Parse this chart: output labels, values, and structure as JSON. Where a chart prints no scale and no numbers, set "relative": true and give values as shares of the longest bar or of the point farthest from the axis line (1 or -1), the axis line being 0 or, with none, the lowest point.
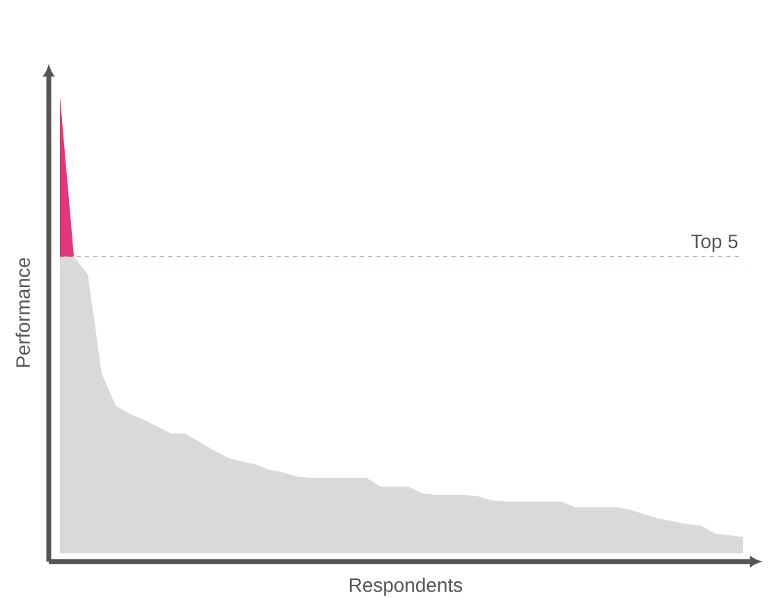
{
  "chart_data": {
    "type": "area",
    "relative": true,
    "stacked": true,
    "xlabel": "Respondents",
    "ylabel": "Performance",
    "categories": [
      null,
      null,
      null,
      null,
      null,
      null,
      null,
      null,
      null,
      null,
      null,
      null,
      null,
      null,
      null,
      null,
      null,
      null,
      null,
      null,
      null,
      null,
      null,
      null,
      null,
      null,
      null,
      null,
      null,
      null,
      null,
      null,
      null,
      null,
      null,
      null,
      null,
      null,
      null,
      null,
      null,
      null,
      null,
      null,
      null,
      null,
      null,
      null,
      null,
      null
    ],
    "series": [
      {
        "color": "#d9d9d9",
        "values": [
          0.649,
          0.649,
          0.61,
          0.393,
          0.323,
          0.305,
          0.293,
          0.277,
          0.262,
          0.262,
          0.244,
          0.226,
          0.21,
          0.201,
          0.195,
          0.183,
          0.177,
          0.168,
          0.165,
          0.165,
          0.165,
          0.165,
          0.165,
          0.146,
          0.146,
          0.146,
          0.131,
          0.128,
          0.128,
          0.128,
          0.125,
          0.116,
          0.113,
          0.113,
          0.113,
          0.113,
          0.113,
          0.101,
          0.101,
          0.101,
          0.101,
          0.095,
          0.085,
          0.076,
          0.07,
          0.064,
          0.061,
          0.043,
          0.04,
          0.036
        ]
      },
      {
        "color": "#e0387a",
        "values": [
          0.351,
          0,
          null,
          null,
          null,
          null,
          null,
          null,
          null,
          null,
          null,
          null,
          null,
          null,
          null,
          null,
          null,
          null,
          null,
          null,
          null,
          null,
          null,
          null,
          null,
          null,
          null,
          null,
          null,
          null,
          null,
          null,
          null,
          null,
          null,
          null,
          null,
          null,
          null,
          null,
          null,
          null,
          null,
          null,
          null,
          null,
          null,
          null,
          null,
          null
        ]
      }
    ],
    "ref_lines": [
      {
        "axis": "y",
        "value": 0.649,
        "label": "Top 5",
        "color": "#c0305f",
        "line_style": "dashed"
      }
    ]
  }
}
